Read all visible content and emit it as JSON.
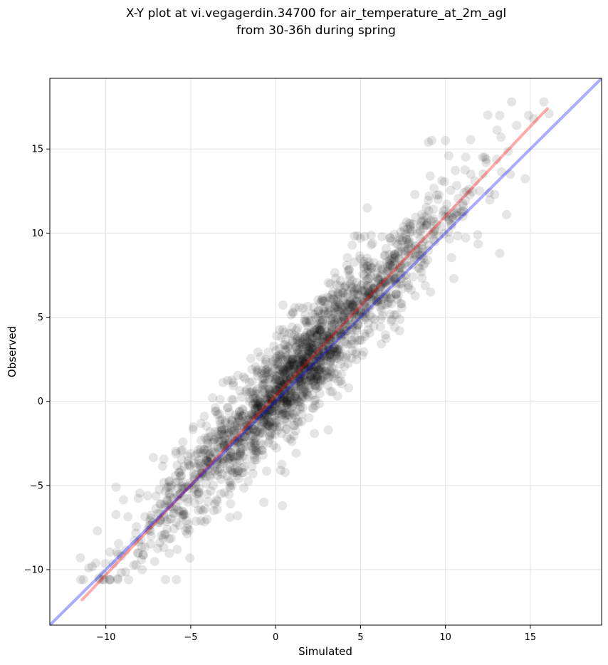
{
  "chart_data": {
    "type": "scatter",
    "title_lines": [
      "X-Y plot at vi.vegagerdin.34700 for air_temperature_at_2m_agl",
      "from 30-36h during spring"
    ],
    "xlabel": "Simulated",
    "ylabel": "Observed",
    "xlim": [
      -13.3,
      19.2
    ],
    "ylim": [
      -13.3,
      19.2
    ],
    "xticks": [
      -10,
      -5,
      0,
      5,
      10,
      15
    ],
    "yticks": [
      -10,
      -5,
      0,
      5,
      10,
      15
    ],
    "tick_labels": [
      "−10",
      "−5",
      "0",
      "5",
      "10",
      "15"
    ],
    "grid": true,
    "colors": {
      "points": "#000000",
      "fit_line": "#ff0000",
      "identity_line": "#0000ff",
      "grid": "#e6e6e6"
    },
    "lines": [
      {
        "kind": "fit",
        "x": [
          -11.4,
          16.0
        ],
        "y": [
          -11.8,
          17.4
        ]
      },
      {
        "kind": "identity",
        "x": [
          -13.3,
          19.2
        ],
        "y": [
          -13.3,
          19.2
        ]
      }
    ],
    "point_summary": {
      "count_approx": 2000,
      "x_range": [
        -11.5,
        16.2
      ],
      "y_range": [
        -10.6,
        17.8
      ],
      "fit_slope": 1.065,
      "fit_intercept": 0.35,
      "residual_sd": 1.5
    },
    "notable_points": [
      [
        13.2,
        17.0
      ],
      [
        14.2,
        16.4
      ],
      [
        14.9,
        17.0
      ],
      [
        15.2,
        16.8
      ],
      [
        15.8,
        17.8
      ],
      [
        16.1,
        17.1
      ],
      [
        9.0,
        15.4
      ],
      [
        9.2,
        15.5
      ],
      [
        10.0,
        15.5
      ],
      [
        10.2,
        14.6
      ],
      [
        12.9,
        12.3
      ],
      [
        13.2,
        8.8
      ],
      [
        13.6,
        11.1
      ],
      [
        11.9,
        9.9
      ],
      [
        10.5,
        7.3
      ],
      [
        7.3,
        4.2
      ],
      [
        4.3,
        0.8
      ],
      [
        3.1,
        -1.7
      ],
      [
        0.3,
        -4.1
      ],
      [
        0.4,
        -6.2
      ],
      [
        -0.7,
        -6.0
      ],
      [
        -2.7,
        -6.9
      ],
      [
        -4.4,
        -7.1
      ],
      [
        -5.3,
        -7.7
      ],
      [
        -5.8,
        -8.8
      ],
      [
        -9.4,
        -5.1
      ],
      [
        -11.5,
        -9.3
      ],
      [
        -11.0,
        -9.9
      ],
      [
        -10.5,
        -7.7
      ],
      [
        -8.1,
        -9.0
      ],
      [
        -3.5,
        -0.6
      ],
      [
        -1.1,
        1.8
      ],
      [
        -1.4,
        1.9
      ],
      [
        -4.4,
        -4.0
      ],
      [
        2.8,
        5.5
      ],
      [
        5.0,
        9.7
      ],
      [
        5.4,
        11.5
      ],
      [
        8.2,
        12.3
      ],
      [
        11.5,
        13.5
      ],
      [
        12.4,
        14.2
      ]
    ]
  }
}
